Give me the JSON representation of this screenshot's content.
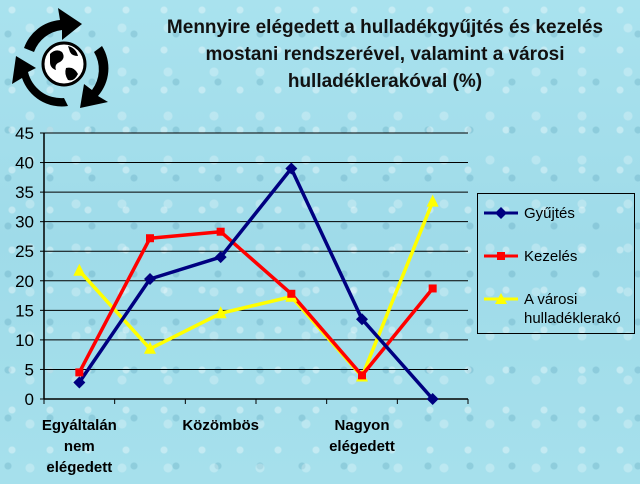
{
  "title_lines": [
    "Mennyire elégedett a hulladékgyűjtés és kezelés",
    "mostani rendszerével, valamint a városi",
    "hulladéklerakóval (%)"
  ],
  "logo": {
    "icon": "recycling-globe-icon"
  },
  "chart_data": {
    "type": "line",
    "title": "Mennyire elégedett a hulladékgyűjtés és kezelés mostani rendszerével, valamint a városi hulladéklerakóval (%)",
    "categories": [
      "Egyáltalán nem elégedett",
      "",
      "Közömbös",
      "",
      "Nagyon elégedett",
      ""
    ],
    "x_tick_labels": [
      {
        "index": 0,
        "lines": [
          "Egyáltalán",
          "nem",
          "elégedett"
        ]
      },
      {
        "index": 2,
        "lines": [
          "Közömbös"
        ]
      },
      {
        "index": 4,
        "lines": [
          "Nagyon",
          "elégedett"
        ]
      }
    ],
    "ylim": [
      0,
      45
    ],
    "yticks": [
      0,
      5,
      10,
      15,
      20,
      25,
      30,
      35,
      40,
      45
    ],
    "grid": true,
    "legend_position": "right",
    "series": [
      {
        "name": "Gyűjtés",
        "color": "#000080",
        "marker": "diamond",
        "values": [
          2.8,
          20.3,
          24,
          39,
          13.5,
          0
        ]
      },
      {
        "name": "Kezelés",
        "color": "#ff0000",
        "marker": "square",
        "values": [
          4.5,
          27.2,
          28.3,
          17.8,
          4,
          18.7
        ]
      },
      {
        "name": "A városi hulladéklerakó",
        "label_lines": [
          "A városi",
          "hulladéklerakó"
        ],
        "color": "#ffff00",
        "marker": "triangle",
        "values": [
          21.7,
          8.5,
          14.5,
          17.3,
          3.8,
          33.4
        ]
      }
    ]
  }
}
